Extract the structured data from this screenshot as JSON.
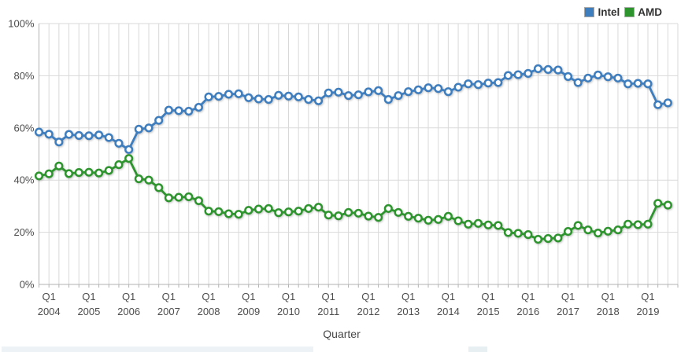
{
  "legend": {
    "items": [
      {
        "label": "Intel",
        "color": "#3e7dbe"
      },
      {
        "label": "AMD",
        "color": "#2e942e"
      }
    ]
  },
  "chart_data": {
    "type": "line",
    "title": "",
    "xlabel": "Quarter",
    "ylabel": "",
    "ylim": [
      0,
      100
    ],
    "yticks": [
      0,
      20,
      40,
      60,
      80,
      100
    ],
    "ytick_labels": [
      "0%",
      "20%",
      "40%",
      "60%",
      "80%",
      "100%"
    ],
    "grid": true,
    "legend_position": "top-right",
    "xtick_quarter_label": "Q1",
    "xtick_years": [
      "2004",
      "2005",
      "2006",
      "2007",
      "2008",
      "2009",
      "2010",
      "2011",
      "2012",
      "2013",
      "2014",
      "2015",
      "2016",
      "2017",
      "2018",
      "2019"
    ],
    "quarters": [
      "Q4 2003",
      "Q1 2004",
      "Q2 2004",
      "Q3 2004",
      "Q4 2004",
      "Q1 2005",
      "Q2 2005",
      "Q3 2005",
      "Q4 2005",
      "Q1 2006",
      "Q2 2006",
      "Q3 2006",
      "Q4 2006",
      "Q1 2007",
      "Q2 2007",
      "Q3 2007",
      "Q4 2007",
      "Q1 2008",
      "Q2 2008",
      "Q3 2008",
      "Q4 2008",
      "Q1 2009",
      "Q2 2009",
      "Q3 2009",
      "Q4 2009",
      "Q1 2010",
      "Q2 2010",
      "Q3 2010",
      "Q4 2010",
      "Q1 2011",
      "Q2 2011",
      "Q3 2011",
      "Q4 2011",
      "Q1 2012",
      "Q2 2012",
      "Q3 2012",
      "Q4 2012",
      "Q1 2013",
      "Q2 2013",
      "Q3 2013",
      "Q4 2013",
      "Q1 2014",
      "Q2 2014",
      "Q3 2014",
      "Q4 2014",
      "Q1 2015",
      "Q2 2015",
      "Q3 2015",
      "Q4 2015",
      "Q1 2016",
      "Q2 2016",
      "Q3 2016",
      "Q4 2016",
      "Q1 2017",
      "Q2 2017",
      "Q3 2017",
      "Q4 2017",
      "Q1 2018",
      "Q2 2018",
      "Q3 2018",
      "Q4 2018",
      "Q1 2019",
      "Q2 2019",
      "Q3 2019"
    ],
    "series": [
      {
        "name": "Intel",
        "color": "#3e7dbe",
        "values": [
          58.4,
          57.6,
          54.6,
          57.5,
          57.1,
          57.0,
          57.3,
          56.3,
          54.1,
          51.7,
          59.5,
          60.0,
          62.9,
          66.8,
          66.6,
          66.4,
          67.9,
          71.9,
          72.1,
          72.9,
          73.1,
          71.6,
          71.1,
          70.9,
          72.5,
          72.2,
          71.9,
          70.9,
          70.4,
          73.4,
          73.7,
          72.4,
          72.7,
          73.8,
          74.3,
          70.9,
          72.4,
          73.9,
          74.6,
          75.4,
          75.1,
          73.9,
          75.6,
          76.9,
          76.6,
          77.2,
          77.4,
          80.1,
          80.4,
          80.9,
          82.7,
          82.4,
          82.2,
          79.7,
          77.4,
          79.1,
          80.3,
          79.6,
          79.1,
          76.9,
          77.1,
          76.9,
          68.9,
          69.6
        ]
      },
      {
        "name": "AMD",
        "color": "#2e942e",
        "values": [
          41.6,
          42.4,
          45.4,
          42.5,
          42.9,
          43.0,
          42.7,
          43.7,
          45.9,
          48.3,
          40.5,
          40.0,
          37.1,
          33.2,
          33.4,
          33.6,
          32.1,
          28.1,
          27.9,
          27.1,
          26.9,
          28.4,
          28.9,
          29.1,
          27.5,
          27.8,
          28.1,
          29.1,
          29.6,
          26.6,
          26.3,
          27.6,
          27.3,
          26.2,
          25.7,
          29.1,
          27.6,
          26.1,
          25.4,
          24.6,
          24.9,
          26.1,
          24.4,
          23.1,
          23.4,
          22.8,
          22.6,
          19.9,
          19.6,
          19.1,
          17.3,
          17.6,
          17.8,
          20.3,
          22.6,
          20.9,
          19.7,
          20.4,
          20.9,
          23.1,
          22.9,
          23.1,
          31.1,
          30.4
        ]
      }
    ]
  }
}
